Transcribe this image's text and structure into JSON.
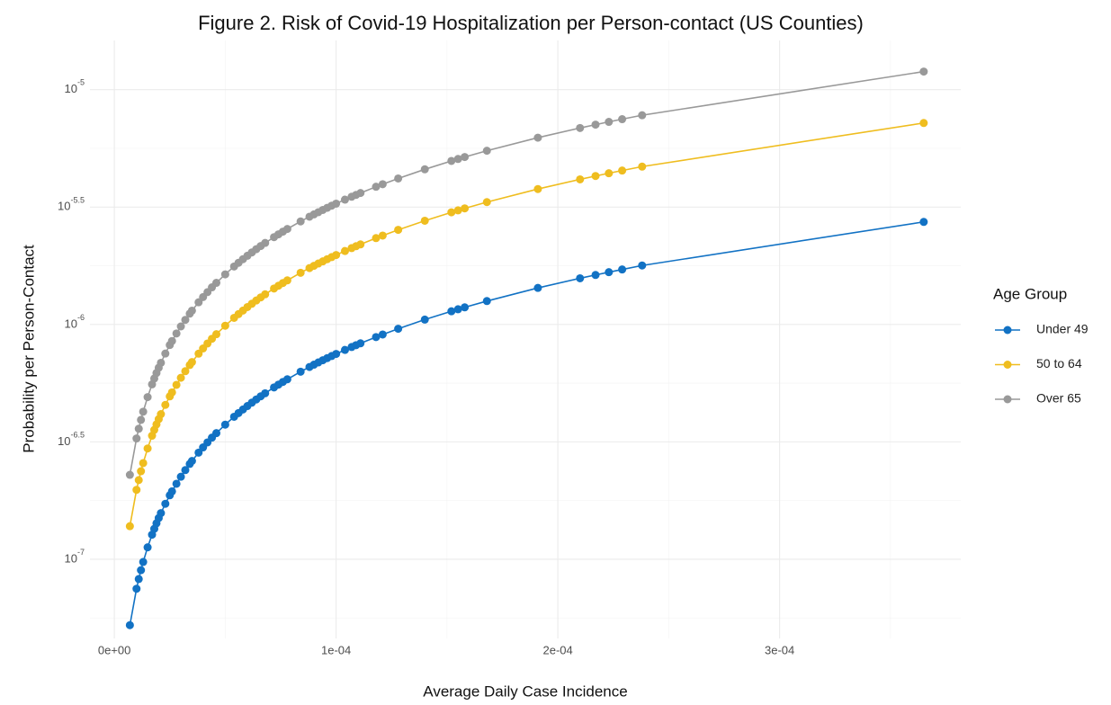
{
  "chart_data": {
    "type": "line",
    "title": "Figure 2. Risk of Covid-19 Hospitalization per Person-contact (US Counties)",
    "x_label": "Average Daily Case Incidence",
    "y_label": "Probability per Person-Contact",
    "legend_title": "Age Group",
    "legend_position": "right",
    "y_scale": "log",
    "grid": true,
    "xlim": [
      -1.1e-05,
      0.0003817
    ],
    "ylim": [
      4.6e-08,
      1.62e-05
    ],
    "xticks": [
      {
        "value": 0,
        "label": "0e+00"
      },
      {
        "value": 0.0001,
        "label": "1e-04"
      },
      {
        "value": 0.0002,
        "label": "2e-04"
      },
      {
        "value": 0.0003,
        "label": "3e-04"
      }
    ],
    "minor_xticks": [
      5e-05,
      0.00015,
      0.00025,
      0.00035
    ],
    "yticks": [
      {
        "value": 1e-07,
        "label": "10^-7"
      },
      {
        "value": 3.1623e-07,
        "label": "10^-6.5"
      },
      {
        "value": 1e-06,
        "label": "10^-6"
      },
      {
        "value": 3.1623e-06,
        "label": "10^-5.5"
      },
      {
        "value": 1e-05,
        "label": "10^-5"
      }
    ],
    "minor_yticks": [
      5.623e-08,
      1.778e-07,
      5.623e-07,
      1.778e-06,
      5.623e-06
    ],
    "x": [
      7e-06,
      1e-05,
      1.1e-05,
      1.2e-05,
      1.3e-05,
      1.5e-05,
      1.7e-05,
      1.8e-05,
      1.9e-05,
      2e-05,
      2.1e-05,
      2.3e-05,
      2.5e-05,
      2.6e-05,
      2.8e-05,
      3e-05,
      3.2e-05,
      3.4e-05,
      3.5e-05,
      3.8e-05,
      4e-05,
      4.2e-05,
      4.4e-05,
      4.6e-05,
      5e-05,
      5.4e-05,
      5.6e-05,
      5.8e-05,
      6e-05,
      6.2e-05,
      6.4e-05,
      6.6e-05,
      6.8e-05,
      7.2e-05,
      7.4e-05,
      7.6e-05,
      7.8e-05,
      8.4e-05,
      8.8e-05,
      9e-05,
      9.2e-05,
      9.4e-05,
      9.6e-05,
      9.8e-05,
      0.0001,
      0.000104,
      0.000107,
      0.000109,
      0.000111,
      0.000118,
      0.000121,
      0.000128,
      0.00014,
      0.000152,
      0.000155,
      0.000158,
      0.000168,
      0.000191,
      0.00021,
      0.000217,
      0.000223,
      0.000229,
      0.000238,
      0.000365
    ],
    "series": [
      {
        "name": "Under 49",
        "color": "#1272c4",
        "values": [
          5.24e-08,
          7.49e-08,
          8.24e-08,
          8.99e-08,
          9.74e-08,
          1.124e-07,
          1.273e-07,
          1.348e-07,
          1.423e-07,
          1.498e-07,
          1.573e-07,
          1.723e-07,
          1.873e-07,
          1.947e-07,
          2.097e-07,
          2.247e-07,
          2.397e-07,
          2.547e-07,
          2.622e-07,
          2.846e-07,
          2.996e-07,
          3.146e-07,
          3.296e-07,
          3.445e-07,
          3.745e-07,
          4.045e-07,
          4.194e-07,
          4.344e-07,
          4.494e-07,
          4.644e-07,
          4.794e-07,
          4.943e-07,
          5.093e-07,
          5.393e-07,
          5.543e-07,
          5.692e-07,
          5.842e-07,
          6.292e-07,
          6.591e-07,
          6.741e-07,
          6.891e-07,
          7.041e-07,
          7.19e-07,
          7.34e-07,
          7.49e-07,
          7.79e-07,
          8.014e-07,
          8.164e-07,
          8.314e-07,
          8.838e-07,
          9.063e-07,
          9.587e-07,
          1.049e-06,
          1.138e-06,
          1.161e-06,
          1.183e-06,
          1.258e-06,
          1.431e-06,
          1.573e-06,
          1.625e-06,
          1.67e-06,
          1.715e-06,
          1.783e-06,
          2.734e-06
        ]
      },
      {
        "name": "50 to 64",
        "color": "#efbd1f",
        "values": [
          1.383e-07,
          1.976e-07,
          2.174e-07,
          2.371e-07,
          2.569e-07,
          2.964e-07,
          3.359e-07,
          3.557e-07,
          3.754e-07,
          3.952e-07,
          4.15e-07,
          4.545e-07,
          4.94e-07,
          5.138e-07,
          5.533e-07,
          5.928e-07,
          6.323e-07,
          6.718e-07,
          6.916e-07,
          7.509e-07,
          7.904e-07,
          8.299e-07,
          8.694e-07,
          9.09e-07,
          9.88e-07,
          1.067e-06,
          1.107e-06,
          1.146e-06,
          1.186e-06,
          1.225e-06,
          1.265e-06,
          1.304e-06,
          1.344e-06,
          1.423e-06,
          1.462e-06,
          1.502e-06,
          1.541e-06,
          1.66e-06,
          1.739e-06,
          1.778e-06,
          1.818e-06,
          1.857e-06,
          1.897e-06,
          1.936e-06,
          1.976e-06,
          2.055e-06,
          2.114e-06,
          2.154e-06,
          2.193e-06,
          2.332e-06,
          2.391e-06,
          2.529e-06,
          2.766e-06,
          3.004e-06,
          3.063e-06,
          3.122e-06,
          3.32e-06,
          3.774e-06,
          4.15e-06,
          4.288e-06,
          4.406e-06,
          4.525e-06,
          4.703e-06,
          7.212e-06
        ]
      },
      {
        "name": "Over 65",
        "color": "#999999",
        "values": [
          2.289e-07,
          3.27e-07,
          3.597e-07,
          3.924e-07,
          4.251e-07,
          4.905e-07,
          5.559e-07,
          5.886e-07,
          6.213e-07,
          6.54e-07,
          6.867e-07,
          7.521e-07,
          8.175e-07,
          8.502e-07,
          9.156e-07,
          9.81e-07,
          1.046e-06,
          1.112e-06,
          1.145e-06,
          1.243e-06,
          1.308e-06,
          1.373e-06,
          1.439e-06,
          1.504e-06,
          1.635e-06,
          1.766e-06,
          1.831e-06,
          1.897e-06,
          1.962e-06,
          2.027e-06,
          2.093e-06,
          2.158e-06,
          2.224e-06,
          2.354e-06,
          2.42e-06,
          2.485e-06,
          2.551e-06,
          2.747e-06,
          2.878e-06,
          2.943e-06,
          3.008e-06,
          3.074e-06,
          3.139e-06,
          3.205e-06,
          3.27e-06,
          3.401e-06,
          3.499e-06,
          3.564e-06,
          3.63e-06,
          3.859e-06,
          3.957e-06,
          4.186e-06,
          4.578e-06,
          4.97e-06,
          5.069e-06,
          5.167e-06,
          5.494e-06,
          6.246e-06,
          6.867e-06,
          7.096e-06,
          7.292e-06,
          7.488e-06,
          7.783e-06,
          1.194e-05
        ]
      }
    ]
  }
}
